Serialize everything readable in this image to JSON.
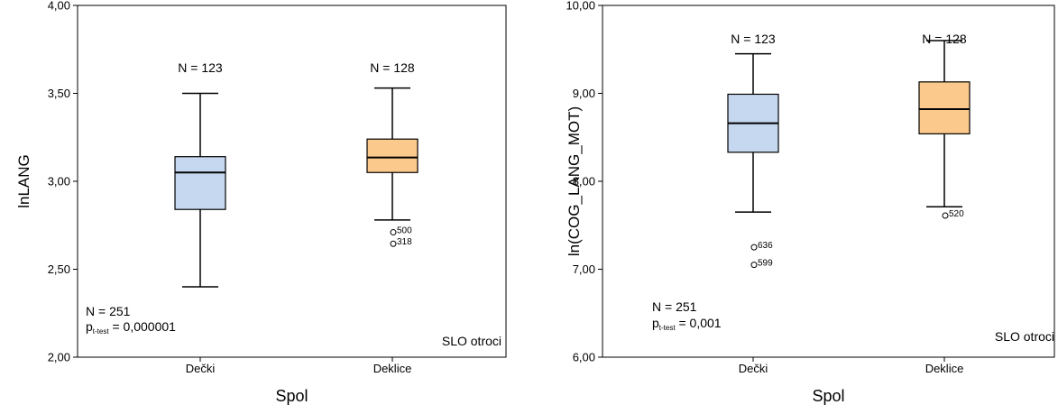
{
  "chart_data": [
    {
      "type": "boxplot",
      "xlabel": "Spol",
      "ylabel": "lnLANG",
      "ylim": [
        2.0,
        4.0
      ],
      "yticks": [
        "2,00",
        "2,50",
        "3,00",
        "3,50",
        "4,00"
      ],
      "ytick_values": [
        2.0,
        2.5,
        3.0,
        3.5,
        4.0
      ],
      "categories": [
        "Dečki",
        "Deklice"
      ],
      "colors": [
        "#c6d8f0",
        "#fcc98c"
      ],
      "groups": [
        {
          "name": "Dečki",
          "n_label": "N = 123",
          "whisker_low": 2.4,
          "q1": 2.84,
          "median": 3.05,
          "q3": 3.14,
          "whisker_high": 3.5,
          "outliers": []
        },
        {
          "name": "Deklice",
          "n_label": "N = 128",
          "whisker_low": 2.78,
          "q1": 3.05,
          "median": 3.135,
          "q3": 3.24,
          "whisker_high": 3.53,
          "outliers": [
            {
              "value": 2.71,
              "label": "500"
            },
            {
              "value": 2.645,
              "label": "318"
            }
          ]
        }
      ],
      "note_n": "N = 251",
      "note_p_main": "p",
      "note_p_sub": "t-test",
      "note_p_value": "= 0,000001",
      "region_label": "SLO otroci"
    },
    {
      "type": "boxplot",
      "xlabel": "Spol",
      "ylabel": "ln(COG_LANG_MOT)",
      "ylim": [
        6.0,
        10.0
      ],
      "yticks": [
        "6,00",
        "7,00",
        "8,00",
        "9,00",
        "10,00"
      ],
      "ytick_values": [
        6.0,
        7.0,
        8.0,
        9.0,
        10.0
      ],
      "categories": [
        "Dečki",
        "Deklice"
      ],
      "colors": [
        "#c6d8f0",
        "#fcc98c"
      ],
      "groups": [
        {
          "name": "Dečki",
          "n_label": "N = 123",
          "whisker_low": 7.65,
          "q1": 8.33,
          "median": 8.66,
          "q3": 8.99,
          "whisker_high": 9.45,
          "outliers": [
            {
              "value": 7.25,
              "label": "636"
            },
            {
              "value": 7.05,
              "label": "599"
            }
          ]
        },
        {
          "name": "Deklice",
          "n_label": "N = 128",
          "whisker_low": 7.71,
          "q1": 8.54,
          "median": 8.82,
          "q3": 9.13,
          "whisker_high": 9.6,
          "outliers": [
            {
              "value": 7.61,
              "label": "520"
            }
          ]
        }
      ],
      "note_n": "N = 251",
      "note_p_main": "p",
      "note_p_sub": "t-test",
      "note_p_value": "= 0,001",
      "region_label": "SLO otroci"
    }
  ]
}
